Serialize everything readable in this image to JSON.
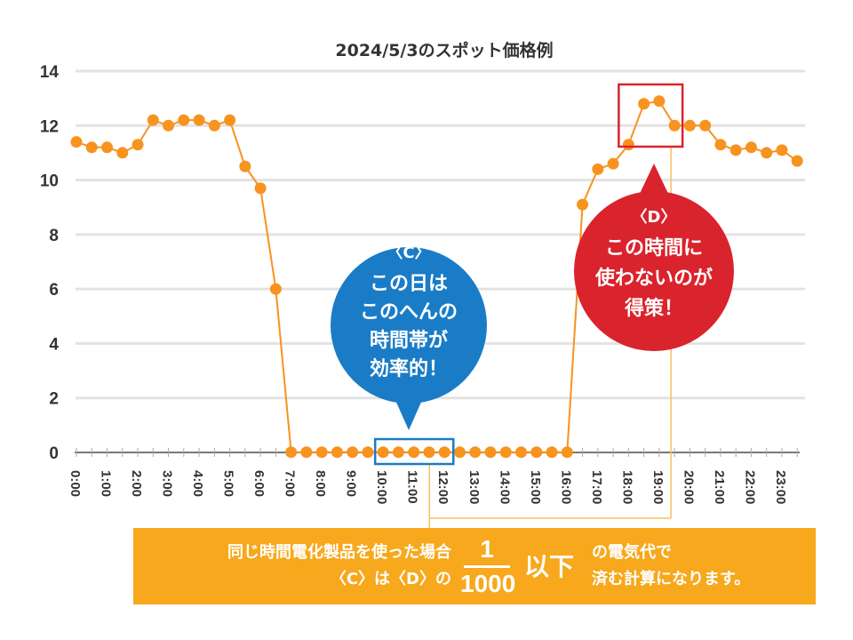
{
  "chart_data": {
    "type": "line",
    "title": "2024/5/3のスポット価格例",
    "xlabel": "",
    "ylabel": "",
    "ylim": [
      0,
      14
    ],
    "yticks": [
      "0",
      "2",
      "4",
      "6",
      "8",
      "10",
      "12",
      "14"
    ],
    "xtick_labels": [
      "0:00",
      "1:00",
      "2:00",
      "3:00",
      "4:00",
      "5:00",
      "6:00",
      "7:00",
      "8:00",
      "9:00",
      "10:00",
      "11:00",
      "12:00",
      "13:00",
      "14:00",
      "15:00",
      "16:00",
      "17:00",
      "18:00",
      "19:00",
      "20:00",
      "21:00",
      "22:00",
      "23:00"
    ],
    "grid": true,
    "series": [
      {
        "name": "スポット価格",
        "color": "#f7931e",
        "x": [
          "0:00",
          "0:30",
          "1:00",
          "1:30",
          "2:00",
          "2:30",
          "3:00",
          "3:30",
          "4:00",
          "4:30",
          "5:00",
          "5:30",
          "6:00",
          "6:30",
          "7:00",
          "7:30",
          "8:00",
          "8:30",
          "9:00",
          "9:30",
          "10:00",
          "10:30",
          "11:00",
          "11:30",
          "12:00",
          "12:30",
          "13:00",
          "13:30",
          "14:00",
          "14:30",
          "15:00",
          "15:30",
          "16:00",
          "16:30",
          "17:00",
          "17:30",
          "18:00",
          "18:30",
          "19:00",
          "19:30",
          "20:00",
          "20:30",
          "21:00",
          "21:30",
          "22:00",
          "22:30",
          "23:00",
          "23:30"
        ],
        "values": [
          11.4,
          11.2,
          11.2,
          11.0,
          11.3,
          12.2,
          12.0,
          12.2,
          12.2,
          12.0,
          12.2,
          10.5,
          9.7,
          6.0,
          0.01,
          0.01,
          0.01,
          0.01,
          0.01,
          0.01,
          0.01,
          0.01,
          0.01,
          0.01,
          0.01,
          0.01,
          0.01,
          0.01,
          0.01,
          0.01,
          0.01,
          0.01,
          0.01,
          9.1,
          10.4,
          10.6,
          11.3,
          12.8,
          12.9,
          12.0,
          12.0,
          12.0,
          11.3,
          11.1,
          11.2,
          11.0,
          11.1,
          10.7
        ]
      }
    ],
    "annotations": {
      "c_box": {
        "from": "10:00",
        "to": "12:00",
        "color": "#1a7cc6"
      },
      "d_box": {
        "from": "18:00",
        "to": "19:30",
        "color": "#d9232d"
      },
      "bubble_c": {
        "color": "#1a7cc6",
        "lines": [
          "〈C〉",
          "この日は",
          "このへんの",
          "時間帯が",
          "効率的！"
        ]
      },
      "bubble_d": {
        "color": "#d9232d",
        "lines": [
          "〈D〉",
          "この時間に",
          "使わないのが",
          "得策！"
        ]
      }
    }
  },
  "banner": {
    "color": "#f7a81c",
    "left_line1": "同じ時間電化製品を使った場合",
    "left_line2": "〈C〉は〈D〉の",
    "fraction_numerator": "1",
    "fraction_denominator": "1000",
    "below": "以下",
    "right_line1": "の電気代で",
    "right_line2": "済む計算になります。"
  }
}
